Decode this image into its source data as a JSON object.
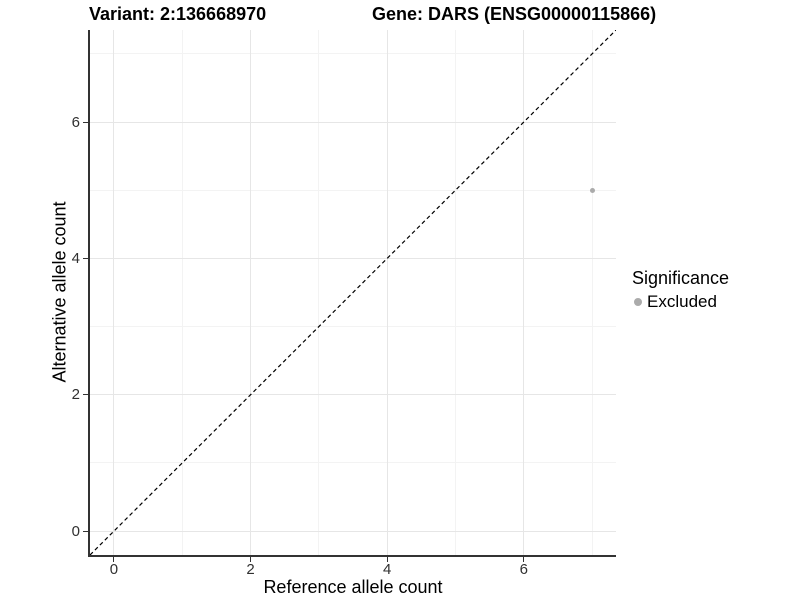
{
  "header": {
    "title_variant": "Variant: 2:136668970",
    "title_gene": "Gene: DARS (ENSG00000115866)"
  },
  "legend": {
    "title": "Significance",
    "items": [
      {
        "label": "Excluded",
        "color": "#ababab",
        "marker": "circle"
      }
    ]
  },
  "colors": {
    "background": "#ffffff",
    "axis_line": "#333333",
    "tick_label": "#303030",
    "grid_major": "#e6e6e6",
    "grid_minor": "#f3f3f3",
    "reference_line": "#000000",
    "point_excluded": "#ababab"
  },
  "chart_data": {
    "type": "scatter",
    "title_left": "Variant: 2:136668970",
    "title_right": "Gene: DARS (ENSG00000115866)",
    "xlabel": "Reference allele count",
    "ylabel": "Alternative allele count",
    "xlim": [
      -0.35,
      7.35
    ],
    "ylim": [
      -0.35,
      7.35
    ],
    "x_ticks": [
      0,
      2,
      4,
      6
    ],
    "y_ticks": [
      0,
      2,
      4,
      6
    ],
    "x_minor_ticks": [
      1,
      3,
      5,
      7
    ],
    "y_minor_ticks": [
      1,
      3,
      5,
      7
    ],
    "grid": true,
    "legend_title": "Significance",
    "legend_position": "right",
    "series": [
      {
        "name": "Excluded",
        "color": "#ababab",
        "marker_size_px": 5,
        "points": [
          {
            "x": 7,
            "y": 5
          }
        ]
      }
    ],
    "reference_line": {
      "equation": "y = x",
      "style": "dashed",
      "color": "#000000"
    }
  }
}
